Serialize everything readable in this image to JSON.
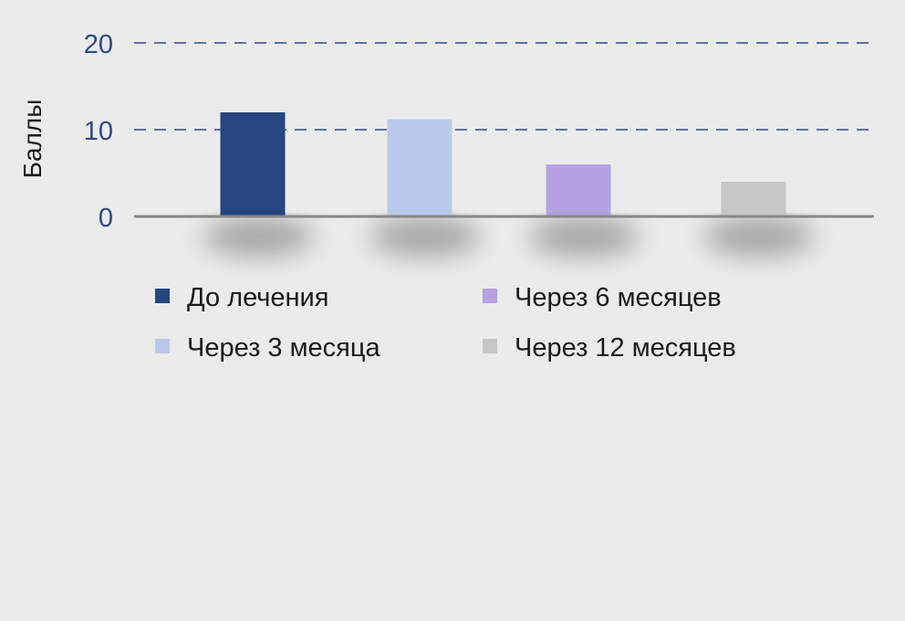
{
  "chart_data": {
    "type": "bar",
    "title": "",
    "xlabel": "",
    "ylabel": "Баллы",
    "ylim": [
      0,
      20
    ],
    "yticks": [
      0,
      10,
      20
    ],
    "grid": true,
    "legend_position": "bottom",
    "categories": [
      "До лечения",
      "Через 3 месяца",
      "Через 6 месяцев",
      "Через 12 месяцев"
    ],
    "values": [
      12,
      11.2,
      6,
      4
    ],
    "colors": [
      "#25467f",
      "#bac9ea",
      "#b4a1e0",
      "#c6c6c6"
    ]
  },
  "style": {
    "background": "#ebebeb",
    "axis_color": "#888888",
    "grid_color": "#2e4a86",
    "tick_label_color": "#2e4a86",
    "ylabel_color": "#1a1a1a",
    "legend_text_color": "#1a1a1a"
  }
}
